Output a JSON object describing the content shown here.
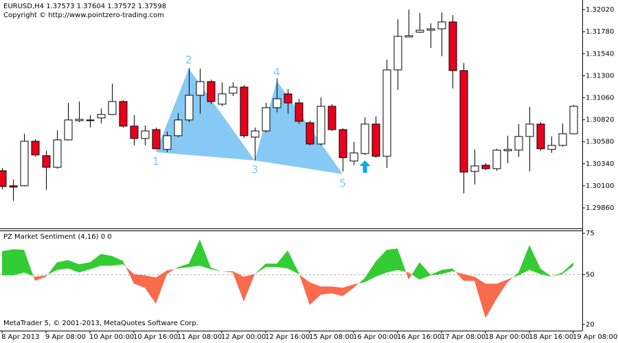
{
  "chart_data": [
    {
      "type": "candlestick",
      "title": "EURUSD,H4  1.37573 1.37604 1.37572 1.37598",
      "subtitle": "Copyright © http://www.pointzero-trading.com",
      "categories": [
        "8 Apr 2013",
        null,
        null,
        null,
        "9 Apr 08:00",
        null,
        null,
        null,
        "10 Apr 00:00",
        null,
        null,
        null,
        "10 Apr 16:00",
        null,
        null,
        null,
        "11 Apr 08:00",
        null,
        null,
        null,
        "12 Apr 00:00",
        null,
        null,
        null,
        "12 Apr 16:00",
        null,
        null,
        null,
        "15 Apr 08:00",
        null,
        null,
        null,
        "16 Apr 00:00",
        null,
        null,
        null,
        "16 Apr 16:00",
        null,
        null,
        null,
        "17 Apr 08:00",
        null,
        null,
        null,
        "18 Apr 00:00",
        null,
        null,
        null,
        "18 Apr 16:00",
        null,
        null,
        null,
        "19 Apr 08:00"
      ],
      "open": [
        1.30265,
        1.30101,
        1.30101,
        1.30586,
        1.30429,
        1.30302,
        1.30601,
        1.3081,
        1.30818,
        1.3084,
        1.30878,
        1.31019,
        1.30751,
        1.30616,
        1.30713,
        1.30497,
        1.30646,
        1.30818,
        1.31087,
        1.31236,
        1.3099,
        1.31109,
        1.31176,
        1.30631,
        1.30698,
        1.30952,
        1.31102,
        1.31004,
        1.30788,
        1.30556,
        1.30967,
        1.30713,
        1.3037,
        1.30452,
        1.30773,
        1.30422,
        1.31363,
        1.31722,
        1.31774,
        1.31796,
        1.31811,
        1.31886,
        1.31356,
        1.30257,
        1.30325,
        1.30287,
        1.30482,
        1.30489,
        1.30638,
        1.30773,
        1.30497,
        1.30541,
        1.30668
      ],
      "high": [
        1.30295,
        1.30168,
        1.30668,
        1.30609,
        1.30482,
        1.30706,
        1.31004,
        1.31019,
        1.3087,
        1.30945,
        1.31214,
        1.31034,
        1.3087,
        1.30758,
        1.30736,
        1.30691,
        1.30892,
        1.31385,
        1.31378,
        1.31258,
        1.31229,
        1.31229,
        1.31199,
        1.30736,
        1.31004,
        1.31273,
        1.31154,
        1.31049,
        1.3081,
        1.31064,
        1.3099,
        1.30728,
        1.30579,
        1.30848,
        1.30855,
        1.31475,
        1.31916,
        1.3202,
        1.31983,
        1.31871,
        1.31991,
        1.31961,
        1.31438,
        1.30497,
        1.30347,
        1.30504,
        1.30646,
        1.30773,
        1.3096,
        1.30795,
        1.30638,
        1.3078,
        1.30982
      ],
      "low": [
        1.30063,
        1.29936,
        1.30093,
        1.30422,
        1.30056,
        1.30287,
        1.30594,
        1.30795,
        1.30736,
        1.3078,
        1.3087,
        1.30736,
        1.30541,
        1.30541,
        1.30497,
        1.30467,
        1.30631,
        1.30795,
        1.30885,
        1.3099,
        1.30967,
        1.31079,
        1.30624,
        1.30377,
        1.30683,
        1.309,
        1.30885,
        1.30773,
        1.30541,
        1.30541,
        1.30698,
        1.30257,
        1.30325,
        1.30437,
        1.30407,
        1.30295,
        1.31146,
        1.31722,
        1.31766,
        1.31602,
        1.31512,
        1.31161,
        1.30018,
        1.30116,
        1.30272,
        1.30265,
        1.30347,
        1.30414,
        1.30257,
        1.30482,
        1.30459,
        1.30526,
        1.30661
      ],
      "close": [
        1.30093,
        1.30086,
        1.30586,
        1.30437,
        1.30302,
        1.30601,
        1.30818,
        1.30825,
        1.30818,
        1.30878,
        1.31019,
        1.30751,
        1.30616,
        1.30698,
        1.30504,
        1.30646,
        1.30818,
        1.31087,
        1.31236,
        1.31019,
        1.31102,
        1.31176,
        1.30646,
        1.30698,
        1.30952,
        1.31049,
        1.31004,
        1.30803,
        1.30556,
        1.30967,
        1.30713,
        1.30407,
        1.30459,
        1.30773,
        1.30422,
        1.31363,
        1.31729,
        1.31737,
        1.31796,
        1.31811,
        1.31886,
        1.31356,
        1.3025,
        1.30317,
        1.30287,
        1.30489,
        1.30497,
        1.30638,
        1.30773,
        1.30504,
        1.30541,
        1.30668,
        1.30967
      ],
      "up_color": "#ffffff",
      "down_color": "#e8001c",
      "ylim": [
        1.29636,
        1.32125
      ],
      "yticks": [
        {
          "value": 1.3202,
          "label": "1.32020"
        },
        {
          "value": 1.3178,
          "label": "1.31780"
        },
        {
          "value": 1.3154,
          "label": "1.31540"
        },
        {
          "value": 1.313,
          "label": "1.31300"
        },
        {
          "value": 1.3106,
          "label": "1.31060"
        },
        {
          "value": 1.3082,
          "label": "1.30820"
        },
        {
          "value": 1.3058,
          "label": "1.30580"
        },
        {
          "value": 1.3034,
          "label": "1.30340"
        },
        {
          "value": 1.301,
          "label": "1.30100"
        },
        {
          "value": 1.2986,
          "label": "1.29860"
        }
      ],
      "pattern_color": "#87c9f5",
      "pattern": [
        {
          "label": "1",
          "x": 14,
          "y": 1.30467
        },
        {
          "label": "2",
          "x": 17,
          "y": 1.31378
        },
        {
          "label": "3",
          "x": 23,
          "y": 1.30377
        },
        {
          "label": "4",
          "x": 25,
          "y": 1.31244
        },
        {
          "label": "5",
          "x": 31,
          "y": 1.30228
        }
      ],
      "signals": [
        {
          "x": 33,
          "direction": "up",
          "color": "#0aa6f0"
        }
      ]
    },
    {
      "type": "sentiment",
      "title": "PZ Market Sentiment (4,16) 0 0",
      "footnote": "MetaTrader 5, © 2001-2013, MetaQuotes Software Corp.",
      "series": [
        {
          "values": [
            64.2,
            65.4,
            65,
            46.3,
            48.8,
            57.5,
            58.8,
            56.3,
            57.5,
            62.5,
            61.3,
            58.3,
            44.6,
            42.1,
            32.5,
            50.4,
            54.6,
            56.7,
            71.3,
            54.2,
            52.1,
            51.3,
            33.8,
            50.4,
            56.7,
            56.7,
            64.6,
            51.3,
            31.7,
            37.9,
            38.8,
            37.1,
            42.1,
            47.9,
            57.9,
            65,
            65.8,
            47.1,
            57.5,
            50,
            52.9,
            53.8,
            46.3,
            46.3,
            23.8,
            35.4,
            45.4,
            51.3,
            67.9,
            53.8,
            48.8,
            51.3,
            57.5
          ]
        },
        {
          "values": [
            49.6,
            49.6,
            51.3,
            48.8,
            49.6,
            52.9,
            53.8,
            51.3,
            53.3,
            55.4,
            55.4,
            56.3,
            50.4,
            49.6,
            48.3,
            52.5,
            53.8,
            54.6,
            55.4,
            53.3,
            52.1,
            52.1,
            48.8,
            50.4,
            54.6,
            54.6,
            53.8,
            50.4,
            45.4,
            42.9,
            42.9,
            42.1,
            44.2,
            45.4,
            48.8,
            51.3,
            52.9,
            51.3,
            47.1,
            49.6,
            50.4,
            52.1,
            50.4,
            48.8,
            44.6,
            44.6,
            47.1,
            49.6,
            52.9,
            50.4,
            48.8,
            50.4,
            55.4
          ]
        }
      ],
      "up_color": "#33cc33",
      "down_color": "#fa6a4c",
      "ylim": [
        16.25,
        76.67
      ],
      "yticks": [
        75,
        50,
        20
      ],
      "ref_level": 50
    }
  ]
}
